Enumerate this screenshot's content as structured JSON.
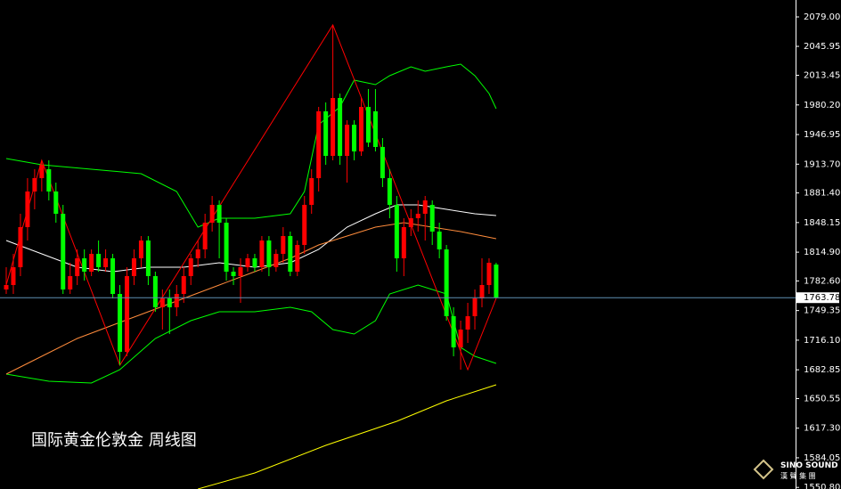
{
  "chart_data": {
    "type": "candlestick",
    "title": "国际黄金伦敦金  周线图",
    "logo": "SINO SOUND",
    "logo_sub": "漢 聲 集 團",
    "up_color": "#ff0000",
    "down_color": "#00ff00",
    "price_line_color": "#5f8fb4",
    "last_price": 1763.78,
    "ylim": [
      1549,
      2098
    ],
    "yticks": [
      {
        "value": 2079.0,
        "label": "2079.00"
      },
      {
        "value": 2045.95,
        "label": "2045.95"
      },
      {
        "value": 2013.45,
        "label": "2013.45"
      },
      {
        "value": 1980.2,
        "label": "1980.20"
      },
      {
        "value": 1946.95,
        "label": "1946.95"
      },
      {
        "value": 1913.7,
        "label": "1913.70"
      },
      {
        "value": 1881.4,
        "label": "1881.40"
      },
      {
        "value": 1848.15,
        "label": "1848.15"
      },
      {
        "value": 1814.9,
        "label": "1814.90"
      },
      {
        "value": 1782.6,
        "label": "1782.60"
      },
      {
        "value": 1749.35,
        "label": "1749.35"
      },
      {
        "value": 1716.1,
        "label": "1716.10"
      },
      {
        "value": 1682.85,
        "label": "1682.85"
      },
      {
        "value": 1650.55,
        "label": "1650.55"
      },
      {
        "value": 1617.3,
        "label": "1617.30"
      },
      {
        "value": 1584.05,
        "label": "1584.05"
      },
      {
        "value": 1550.8,
        "label": "1550.80"
      }
    ],
    "open": [
      1773,
      1778,
      1798,
      1843,
      1883,
      1898,
      1908,
      1883,
      1858,
      1773,
      1788,
      1808,
      1793,
      1813,
      1798,
      1808,
      1768,
      1703,
      1788,
      1808,
      1828,
      1788,
      1753,
      1763,
      1753,
      1768,
      1788,
      1808,
      1818,
      1848,
      1868,
      1848,
      1793,
      1788,
      1798,
      1808,
      1798,
      1828,
      1798,
      1813,
      1833,
      1793,
      1823,
      1868,
      1898,
      1973,
      1923,
      1988,
      1923,
      1958,
      1928,
      1978,
      1973,
      1933,
      1898,
      1868,
      1808,
      1843,
      1853,
      1858,
      1868,
      1838,
      1818,
      1743,
      1708,
      1728,
      1743,
      1763,
      1778,
      1801
    ],
    "high": [
      1798,
      1813,
      1858,
      1898,
      1908,
      1918,
      1918,
      1893,
      1868,
      1803,
      1818,
      1818,
      1818,
      1828,
      1818,
      1813,
      1778,
      1798,
      1818,
      1833,
      1833,
      1793,
      1773,
      1773,
      1778,
      1798,
      1813,
      1828,
      1858,
      1878,
      1873,
      1853,
      1798,
      1808,
      1813,
      1813,
      1833,
      1833,
      1818,
      1843,
      1838,
      1828,
      1878,
      1908,
      1978,
      1983,
      2070,
      1993,
      1963,
      1963,
      1988,
      1998,
      1998,
      1943,
      1908,
      1878,
      1853,
      1863,
      1873,
      1878,
      1873,
      1848,
      1823,
      1753,
      1738,
      1758,
      1773,
      1808,
      1808,
      1803
    ],
    "low": [
      1768,
      1768,
      1788,
      1828,
      1863,
      1883,
      1873,
      1848,
      1768,
      1768,
      1778,
      1783,
      1788,
      1793,
      1793,
      1763,
      1688,
      1698,
      1778,
      1798,
      1778,
      1748,
      1728,
      1723,
      1743,
      1758,
      1778,
      1798,
      1808,
      1838,
      1808,
      1783,
      1778,
      1758,
      1793,
      1793,
      1793,
      1788,
      1793,
      1803,
      1788,
      1788,
      1813,
      1858,
      1883,
      1913,
      1918,
      1913,
      1893,
      1918,
      1923,
      1933,
      1928,
      1888,
      1853,
      1793,
      1788,
      1833,
      1838,
      1828,
      1823,
      1808,
      1738,
      1698,
      1683,
      1713,
      1728,
      1753,
      1768,
      1763
    ],
    "close": [
      1778,
      1798,
      1843,
      1883,
      1898,
      1913,
      1883,
      1858,
      1773,
      1788,
      1808,
      1793,
      1813,
      1798,
      1808,
      1768,
      1703,
      1788,
      1808,
      1828,
      1788,
      1753,
      1763,
      1753,
      1768,
      1788,
      1808,
      1818,
      1848,
      1868,
      1848,
      1793,
      1788,
      1798,
      1808,
      1798,
      1828,
      1798,
      1813,
      1833,
      1793,
      1823,
      1868,
      1898,
      1973,
      1923,
      1988,
      1923,
      1958,
      1928,
      1978,
      1938,
      1933,
      1898,
      1868,
      1808,
      1843,
      1853,
      1858,
      1873,
      1838,
      1818,
      1743,
      1708,
      1728,
      1743,
      1763,
      1778,
      1803,
      1763.78
    ],
    "series": [
      {
        "color": "#00ff00",
        "x": [
          0,
          5,
          12,
          19,
          24,
          27,
          30,
          35,
          40,
          42,
          44,
          47,
          49,
          52,
          54,
          57,
          59,
          62,
          64,
          66,
          68,
          69
        ],
        "values": [
          1920,
          1913,
          1908,
          1903,
          1883,
          1843,
          1853,
          1853,
          1858,
          1883,
          1958,
          1978,
          2008,
          2003,
          2013,
          2023,
          2018,
          2023,
          2026,
          2013,
          1993,
          1976
        ]
      },
      {
        "color": "#00ff00",
        "x": [
          0,
          6,
          12,
          16,
          21,
          26,
          30,
          35,
          40,
          43,
          46,
          49,
          52,
          54,
          58,
          62,
          64,
          66,
          69
        ],
        "values": [
          1678,
          1670,
          1668,
          1683,
          1718,
          1738,
          1748,
          1748,
          1753,
          1748,
          1728,
          1723,
          1738,
          1768,
          1778,
          1768,
          1708,
          1698,
          1690
        ]
      },
      {
        "color": "#ffffff",
        "x": [
          0,
          5,
          10,
          15,
          20,
          25,
          30,
          35,
          40,
          44,
          48,
          52,
          55,
          58,
          62,
          66,
          69
        ],
        "values": [
          1828,
          1813,
          1798,
          1793,
          1798,
          1798,
          1803,
          1798,
          1803,
          1818,
          1843,
          1858,
          1868,
          1868,
          1863,
          1858,
          1856
        ]
      },
      {
        "color": "#ff8c3c",
        "x": [
          0,
          5,
          10,
          15,
          20,
          25,
          30,
          35,
          40,
          44,
          48,
          52,
          56,
          60,
          64,
          69
        ],
        "values": [
          1678,
          1698,
          1718,
          1733,
          1748,
          1763,
          1778,
          1793,
          1808,
          1823,
          1833,
          1843,
          1848,
          1843,
          1838,
          1830
        ]
      },
      {
        "color": "#ffff00",
        "x": [
          27,
          35,
          45,
          55,
          62,
          69
        ],
        "values": [
          1549,
          1567,
          1598,
          1625,
          1648,
          1666
        ]
      },
      {
        "color": "#ff0000",
        "x": [
          0,
          5,
          16,
          46,
          65,
          69
        ],
        "values": [
          1778,
          1918,
          1688,
          2070,
          1683,
          1763
        ]
      }
    ]
  }
}
